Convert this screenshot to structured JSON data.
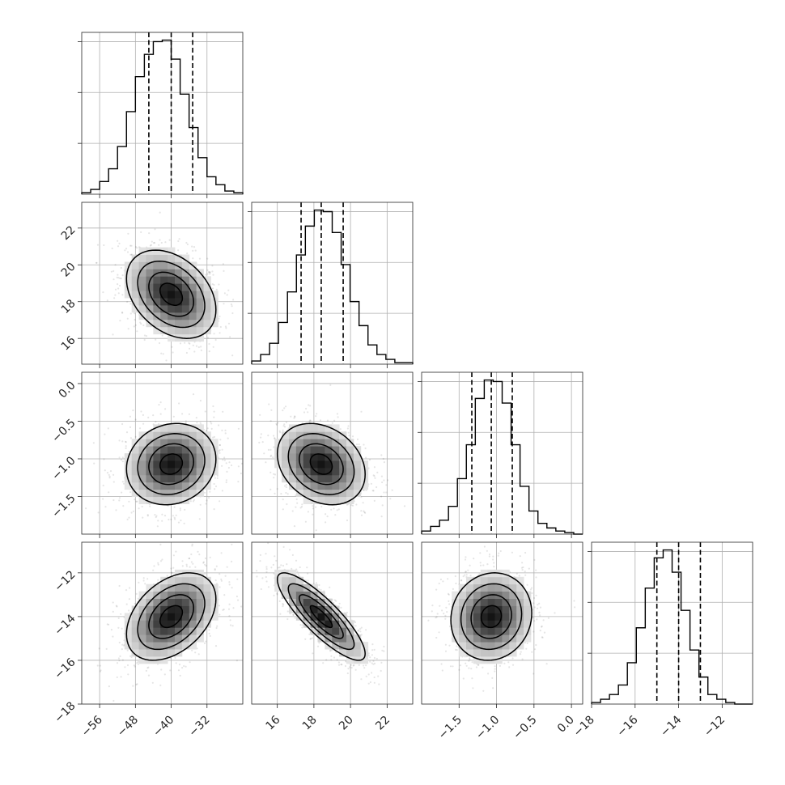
{
  "chart_data": {
    "type": "corner",
    "parameters": [
      {
        "index": 0,
        "range": [
          -60,
          -24
        ],
        "ticks": [
          -56,
          -48,
          -40,
          -32
        ],
        "tick_labels": [
          "−56",
          "−48",
          "−40",
          "−32"
        ],
        "quantiles": [
          -45.0,
          -40.0,
          -35.2
        ],
        "hist": [
          1,
          3,
          8,
          16,
          30,
          52,
          74,
          88,
          96,
          97,
          85,
          63,
          42,
          23,
          11,
          6,
          2,
          1
        ]
      },
      {
        "index": 1,
        "range": [
          14.6,
          23.4
        ],
        "ticks": [
          16,
          18,
          20,
          22
        ],
        "tick_labels": [
          "16",
          "18",
          "20",
          "22"
        ],
        "quantiles": [
          17.3,
          18.4,
          19.6
        ],
        "hist": [
          2,
          6,
          13,
          26,
          45,
          68,
          86,
          96,
          95,
          82,
          62,
          39,
          24,
          12,
          6,
          3,
          1,
          1
        ]
      },
      {
        "index": 2,
        "range": [
          -2.0,
          0.15
        ],
        "ticks": [
          -1.5,
          -1.0,
          -0.5,
          0.0
        ],
        "tick_labels": [
          "−1.5",
          "−1.0",
          "−0.5",
          "0.0"
        ],
        "quantiles": [
          -1.33,
          -1.07,
          -0.79
        ],
        "hist": [
          2,
          5,
          9,
          18,
          36,
          58,
          88,
          100,
          99,
          85,
          58,
          31,
          15,
          7,
          4,
          2,
          1,
          0
        ]
      },
      {
        "index": 3,
        "range": [
          -18,
          -10.6
        ],
        "ticks": [
          -18,
          -16,
          -14,
          -12
        ],
        "tick_labels": [
          "−18",
          "−16",
          "−14",
          "−12"
        ],
        "quantiles": [
          -15.0,
          -14.0,
          -13.0
        ],
        "hist": [
          1,
          3,
          6,
          12,
          26,
          48,
          73,
          92,
          97,
          83,
          59,
          34,
          17,
          6,
          3,
          1,
          0,
          0
        ]
      }
    ],
    "pairs": [
      {
        "x_param": 0,
        "y_param": 1,
        "mean": [
          -40.0,
          18.4
        ],
        "sd": [
          5.0,
          1.2
        ],
        "corr": -0.35
      },
      {
        "x_param": 0,
        "y_param": 2,
        "mean": [
          -40.0,
          -1.07
        ],
        "sd": [
          5.0,
          0.27
        ],
        "corr": 0.12
      },
      {
        "x_param": 1,
        "y_param": 2,
        "mean": [
          18.4,
          -1.07
        ],
        "sd": [
          1.2,
          0.27
        ],
        "corr": -0.25
      },
      {
        "x_param": 0,
        "y_param": 3,
        "mean": [
          -40.0,
          -14.0
        ],
        "sd": [
          5.0,
          1.0
        ],
        "corr": 0.4
      },
      {
        "x_param": 1,
        "y_param": 3,
        "mean": [
          18.4,
          -14.0
        ],
        "sd": [
          1.2,
          1.0
        ],
        "corr": -0.85
      },
      {
        "x_param": 2,
        "y_param": 3,
        "mean": [
          -1.07,
          -14.0
        ],
        "sd": [
          0.27,
          1.0
        ],
        "corr": 0.08
      }
    ],
    "contour_sigma_levels": [
      0.5,
      1.0,
      1.5,
      2.0
    ],
    "grid": true,
    "title": "",
    "xlabel": "",
    "ylabel": ""
  }
}
